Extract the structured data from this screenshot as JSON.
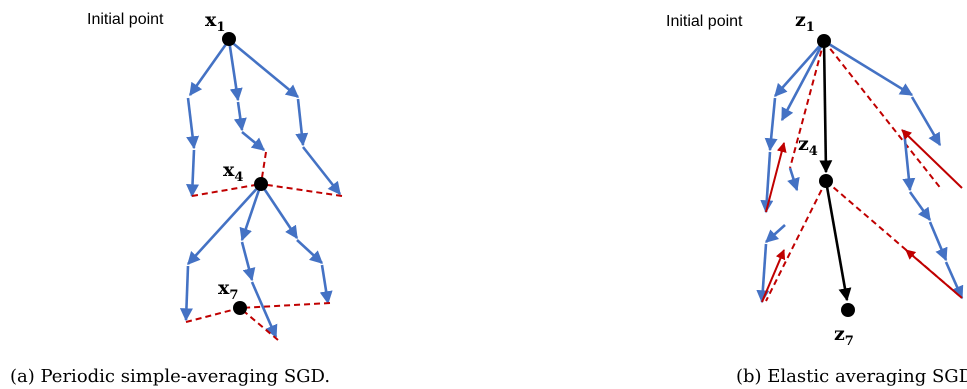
{
  "panel_a": {
    "initial_label": "Initial point",
    "x1": {
      "base": "x",
      "sub": "1"
    },
    "x4": {
      "base": "x",
      "sub": "4"
    },
    "x7": {
      "base": "x",
      "sub": "7"
    },
    "caption": "(a) Periodic simple-averaging SGD."
  },
  "panel_b": {
    "initial_label": "Initial point",
    "z1": {
      "base": "z",
      "sub": "1"
    },
    "z4": {
      "base": "z",
      "sub": "4"
    },
    "z7": {
      "base": "z",
      "sub": "7"
    },
    "caption": "(b) Elastic averaging SGD."
  },
  "colors": {
    "sgd_step": "#4472C4",
    "averaging": "#C00000",
    "center": "#000000"
  }
}
